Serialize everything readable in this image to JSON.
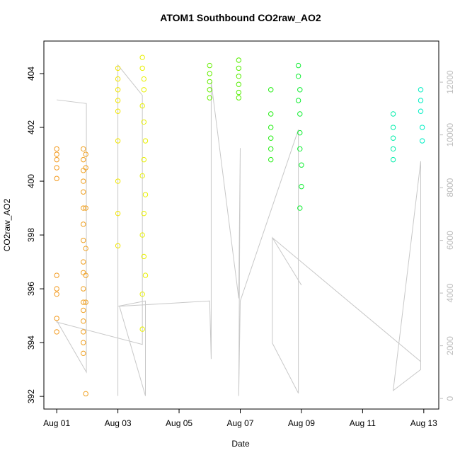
{
  "chart_data": {
    "type": "scatter",
    "title": "ATOM1 Southbound CO2raw_AO2",
    "x_label": "Date",
    "y_label": "CO2raw_AO2",
    "xlim": [
      -0.42,
      12.49
    ],
    "xticks": [
      {
        "value": 0,
        "label": "Aug 01"
      },
      {
        "value": 2,
        "label": "Aug 03"
      },
      {
        "value": 4,
        "label": "Aug 05"
      },
      {
        "value": 6,
        "label": "Aug 07"
      },
      {
        "value": 8,
        "label": "Aug 09"
      },
      {
        "value": 10,
        "label": "Aug 11"
      },
      {
        "value": 12,
        "label": "Aug 13"
      }
    ],
    "ylim": [
      391.53,
      405.21
    ],
    "yticks": [
      392,
      394,
      396,
      398,
      400,
      402,
      404
    ],
    "y2lim": [
      -400,
      13560
    ],
    "y2ticks": [
      0,
      2000,
      4000,
      6000,
      8000,
      10000,
      12000
    ],
    "y2_color": "#bbbbbb",
    "series": [
      {
        "color": "#f39a1e",
        "x": [
          0,
          0,
          0,
          0,
          0,
          0,
          0,
          0,
          0,
          0
        ],
        "values": [
          401.2,
          401,
          400.8,
          400.5,
          400.1,
          396.5,
          396,
          395.8,
          394.9,
          394.4
        ]
      },
      {
        "color": "#f0a020",
        "x": [
          0.87,
          0.87,
          0.87,
          0.87,
          0.87,
          0.87,
          0.87,
          0.87,
          0.87,
          0.87,
          0.87,
          0.87,
          0.87,
          0.87,
          0.87,
          0.87,
          0.87,
          0.95,
          0.95,
          0.95,
          0.95,
          0.95,
          0.95,
          0.95
        ],
        "values": [
          401.2,
          400.8,
          400.4,
          400,
          399.6,
          399,
          398.4,
          397.8,
          397,
          396.6,
          396,
          395.5,
          395.2,
          394.8,
          394.4,
          394,
          393.6,
          401,
          400.5,
          399,
          397.5,
          396.5,
          395.5,
          392.1
        ]
      },
      {
        "color": "#f2e600",
        "x": [
          2,
          2,
          2,
          2,
          2,
          2,
          2,
          2,
          2
        ],
        "values": [
          404.2,
          403.8,
          403.4,
          403,
          402.6,
          401.5,
          400,
          398.8,
          397.6
        ]
      },
      {
        "color": "#e8f000",
        "x": [
          2.8,
          2.8,
          2.85,
          2.85,
          2.8,
          2.85,
          2.9,
          2.85,
          2.8,
          2.9,
          2.85,
          2.8,
          2.85,
          2.9,
          2.8,
          2.8
        ],
        "values": [
          404.6,
          404.2,
          403.8,
          403.4,
          402.8,
          402.2,
          401.5,
          400.8,
          400.2,
          399.5,
          398.8,
          398,
          397.2,
          396.5,
          395.8,
          394.5
        ]
      },
      {
        "color": "#66ee00",
        "x": [
          5,
          5,
          5,
          5,
          5
        ],
        "values": [
          404.3,
          404,
          403.7,
          403.4,
          403.1
        ]
      },
      {
        "color": "#55ee00",
        "x": [
          5.95,
          5.95,
          5.95,
          5.95,
          5.95,
          5.95
        ],
        "values": [
          404.5,
          404.2,
          403.9,
          403.6,
          403.3,
          403.1
        ]
      },
      {
        "color": "#22ee11",
        "x": [
          7,
          7,
          7,
          7,
          7,
          7
        ],
        "values": [
          403.4,
          402.5,
          402,
          401.6,
          401.2,
          400.8
        ]
      },
      {
        "color": "#11ee33",
        "x": [
          7.9,
          7.9,
          7.95,
          7.9,
          7.95,
          7.95,
          7.95,
          8,
          8,
          7.95
        ],
        "values": [
          404.3,
          403.9,
          403.4,
          403,
          402.5,
          401.8,
          401.2,
          400.6,
          399.8,
          399
        ]
      },
      {
        "color": "#00eeaa",
        "x": [
          11,
          11,
          11,
          11,
          11
        ],
        "values": [
          402.5,
          402,
          401.6,
          401.2,
          400.8
        ]
      },
      {
        "color": "#00eec4",
        "x": [
          11.9,
          11.9,
          11.9,
          11.95,
          11.95
        ],
        "values": [
          403.4,
          403,
          402.6,
          402,
          401.5
        ]
      },
      {
        "type": "line",
        "axis": "y2",
        "color": "#c8c8c8",
        "x": [
          0,
          0.97,
          0.97,
          0,
          0,
          2.8,
          2.8,
          2,
          2,
          2,
          2.9,
          2.9,
          2.05,
          5,
          5.05,
          5.05,
          5.95,
          6,
          5.95,
          6,
          7.9,
          7.9,
          7.05,
          7.05,
          8,
          7.05,
          11.9,
          11.9,
          11,
          11,
          11.9,
          11.9
        ],
        "values": [
          11330,
          11190,
          1000,
          2950,
          2900,
          2050,
          11500,
          12650,
          100,
          3500,
          3700,
          100,
          3500,
          3700,
          1500,
          12000,
          3800,
          9500,
          100,
          3700,
          10200,
          200,
          2100,
          6100,
          4300,
          6100,
          1400,
          9000,
          300,
          300,
          1100,
          9000
        ]
      }
    ]
  }
}
